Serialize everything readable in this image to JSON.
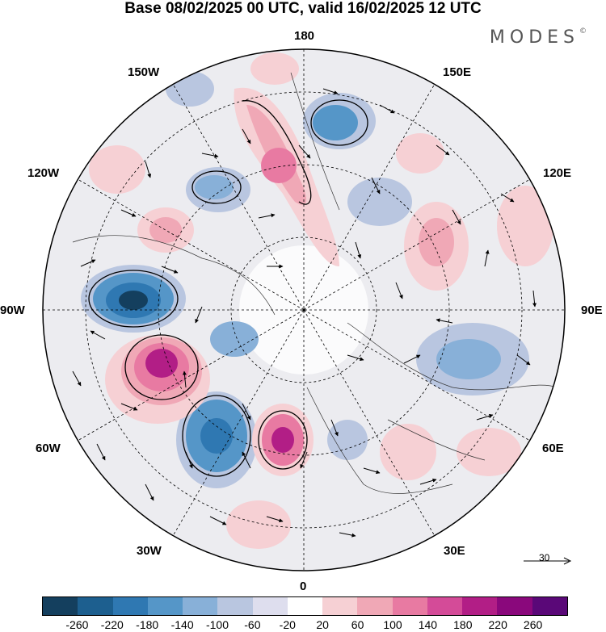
{
  "title": "Base 08/02/2025 00 UTC, valid 16/02/2025 12 UTC",
  "brand": "MODES",
  "brand_mark": "©",
  "longitude_labels": {
    "north": "180",
    "south": "0",
    "west": "90W",
    "east": "90E",
    "nw_inner": "150W",
    "nw_outer": "120W",
    "ne_inner": "150E",
    "ne_outer": "120E",
    "sw_outer": "60W",
    "sw_inner": "30W",
    "se_outer": "60E",
    "se_inner": "30E"
  },
  "reference_vector": "30",
  "colorbar": {
    "labels": [
      "-260",
      "-220",
      "-180",
      "-140",
      "-100",
      "-60",
      "-20",
      "20",
      "60",
      "100",
      "140",
      "180",
      "220",
      "260"
    ],
    "colors": [
      "#143f5e",
      "#1d5f8f",
      "#2f78b2",
      "#5596c8",
      "#88b0d8",
      "#b9c6e0",
      "#dedeee",
      "#ffffff",
      "#f6d0d4",
      "#f0a8b6",
      "#e87aa2",
      "#d44b98",
      "#b21e86",
      "#8a087c",
      "#5a0878"
    ]
  }
}
